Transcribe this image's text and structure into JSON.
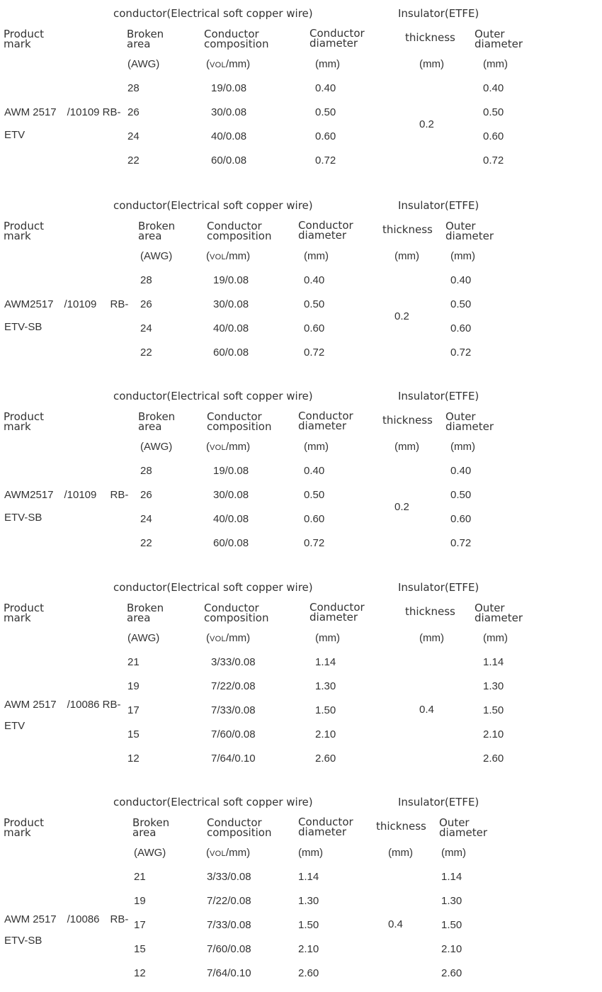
{
  "tables": [
    {
      "header": {
        "group_conductor": "conductor(Electrical soft copper wire)",
        "group_insulator": "Insulator(ETFE)",
        "product_mark": "Product\nmark",
        "broken_area": "Broken\narea",
        "conductor_composition": "Conductor\ncomposition",
        "conductor_diameter": "Conductor\ndiameter",
        "thickness": "thickness",
        "outer_diameter": "Outer\ndiameter",
        "unit_awg": "(AWG)",
        "unit_vol_small": "VOL",
        "unit_vol_rest": "/mm)",
        "unit_cond_dia": "(mm)",
        "unit_thickness": "(mm)",
        "unit_outer": "(mm)"
      },
      "product_line1": "AWM 2517　/10109 RB-",
      "product_line2": "ETV",
      "thickness_value": "0.2",
      "rows": [
        {
          "awg": "28",
          "composition": "19/0.08",
          "cond_dia": "0.40",
          "outer": "0.40"
        },
        {
          "awg": "26",
          "composition": "30/0.08",
          "cond_dia": "0.50",
          "outer": "0.50"
        },
        {
          "awg": "24",
          "composition": "40/0.08",
          "cond_dia": "0.60",
          "outer": "0.60"
        },
        {
          "awg": "22",
          "composition": "60/0.08",
          "cond_dia": "0.72",
          "outer": "0.72"
        }
      ]
    },
    {
      "header": {
        "group_conductor": "conductor(Electrical soft copper wire)",
        "group_insulator": "Insulator(ETFE)",
        "product_mark": "Product\nmark",
        "broken_area": "Broken\narea",
        "conductor_composition": "Conductor\ncomposition",
        "conductor_diameter": "Conductor\ndiameter",
        "thickness": "thickness",
        "outer_diameter": "Outer\ndiameter",
        "unit_awg": "(AWG)",
        "unit_vol_small": "VOL",
        "unit_vol_rest": "/mm)",
        "unit_cond_dia": "(mm)",
        "unit_thickness": "(mm)",
        "unit_outer": "(mm)"
      },
      "product_line1": "AWM2517　/10109　 RB-",
      "product_line2": "ETV-SB",
      "thickness_value": "0.2",
      "rows": [
        {
          "awg": "28",
          "composition": "19/0.08",
          "cond_dia": "0.40",
          "outer": "0.40"
        },
        {
          "awg": "26",
          "composition": "30/0.08",
          "cond_dia": "0.50",
          "outer": "0.50"
        },
        {
          "awg": "24",
          "composition": "40/0.08",
          "cond_dia": "0.60",
          "outer": "0.60"
        },
        {
          "awg": "22",
          "composition": "60/0.08",
          "cond_dia": "0.72",
          "outer": "0.72"
        }
      ]
    },
    {
      "header": {
        "group_conductor": "conductor(Electrical soft copper wire)",
        "group_insulator": "Insulator(ETFE)",
        "product_mark": "Product\nmark",
        "broken_area": "Broken\narea",
        "conductor_composition": "Conductor\ncomposition",
        "conductor_diameter": "Conductor\ndiameter",
        "thickness": "thickness",
        "outer_diameter": "Outer\ndiameter",
        "unit_awg": "(AWG)",
        "unit_vol_small": "VOL",
        "unit_vol_rest": "/mm)",
        "unit_cond_dia": "(mm)",
        "unit_thickness": "(mm)",
        "unit_outer": "(mm)"
      },
      "product_line1": "AWM2517　/10109　 RB-",
      "product_line2": "ETV-SB",
      "thickness_value": "0.2",
      "rows": [
        {
          "awg": "28",
          "composition": "19/0.08",
          "cond_dia": "0.40",
          "outer": "0.40"
        },
        {
          "awg": "26",
          "composition": "30/0.08",
          "cond_dia": "0.50",
          "outer": "0.50"
        },
        {
          "awg": "24",
          "composition": "40/0.08",
          "cond_dia": "0.60",
          "outer": "0.60"
        },
        {
          "awg": "22",
          "composition": "60/0.08",
          "cond_dia": "0.72",
          "outer": "0.72"
        }
      ]
    },
    {
      "header": {
        "group_conductor": "conductor(Electrical soft copper wire)",
        "group_insulator": "Insulator(ETFE)",
        "product_mark": "Product\nmark",
        "broken_area": "Broken\narea",
        "conductor_composition": "Conductor\ncomposition",
        "conductor_diameter": "Conductor\ndiameter",
        "thickness": "thickness",
        "outer_diameter": "Outer\ndiameter",
        "unit_awg": "(AWG)",
        "unit_vol_small": "VOL",
        "unit_vol_rest": "/mm)",
        "unit_cond_dia": "(mm)",
        "unit_thickness": "(mm)",
        "unit_outer": "(mm)"
      },
      "product_line1": "AWM 2517　/10086 RB-",
      "product_line2": "ETV",
      "thickness_value": "0.4",
      "rows": [
        {
          "awg": "21",
          "composition": "3/33/0.08",
          "cond_dia": "1.14",
          "outer": "1.14"
        },
        {
          "awg": "19",
          "composition": "7/22/0.08",
          "cond_dia": "1.30",
          "outer": "1.30"
        },
        {
          "awg": "17",
          "composition": "7/33/0.08",
          "cond_dia": "1.50",
          "outer": "1.50"
        },
        {
          "awg": "15",
          "composition": "7/60/0.08",
          "cond_dia": "2.10",
          "outer": "2.10"
        },
        {
          "awg": "12",
          "composition": "7/64/0.10",
          "cond_dia": "2.60",
          "outer": "2.60"
        }
      ]
    },
    {
      "header": {
        "group_conductor": "conductor(Electrical soft copper wire)",
        "group_insulator": "Insulator(ETFE)",
        "product_mark": "Product\nmark",
        "broken_area": "Broken\narea",
        "conductor_composition": "Conductor\ncomposition",
        "conductor_diameter": "Conductor\ndiameter",
        "thickness": "thickness",
        "outer_diameter": "Outer\ndiameter",
        "unit_awg": "(AWG)",
        "unit_vol_small": "VOL",
        "unit_vol_rest": "/mm)",
        "unit_cond_dia": "(mm)",
        "unit_thickness": "(mm)",
        "unit_outer": "(mm)"
      },
      "product_line1": "AWM 2517　/10086　RB-",
      "product_line2": "ETV-SB",
      "thickness_value": "0.4",
      "rows": [
        {
          "awg": "21",
          "composition": "3/33/0.08",
          "cond_dia": "1.14",
          "outer": "1.14"
        },
        {
          "awg": "19",
          "composition": "7/22/0.08",
          "cond_dia": "1.30",
          "outer": "1.30"
        },
        {
          "awg": "17",
          "composition": "7/33/0.08",
          "cond_dia": "1.50",
          "outer": "1.50"
        },
        {
          "awg": "15",
          "composition": "7/60/0.08",
          "cond_dia": "2.10",
          "outer": "2.10"
        },
        {
          "awg": "12",
          "composition": "7/64/0.10",
          "cond_dia": "2.60",
          "outer": "2.60"
        }
      ]
    }
  ]
}
